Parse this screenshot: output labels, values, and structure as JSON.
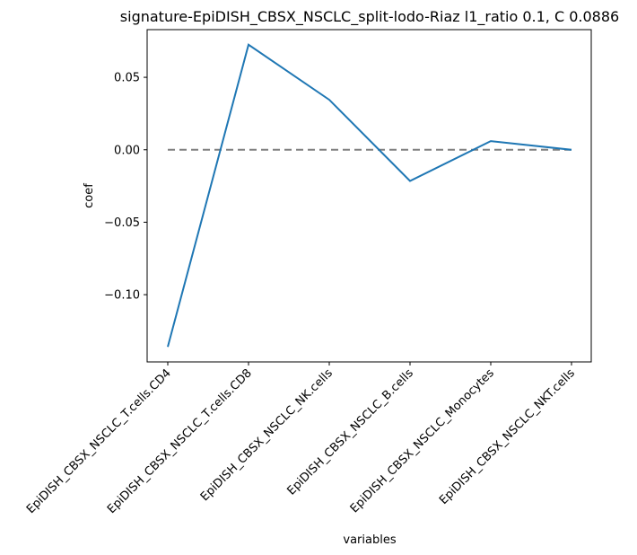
{
  "chart_data": {
    "type": "line",
    "title": "signature-EpiDISH_CBSX_NSCLC_split-lodo-Riaz l1_ratio 0.1, C 0.0886",
    "xlabel": "variables",
    "ylabel": "coef",
    "categories": [
      "EpiDISH_CBSX_NSCLC_T.cells.CD4",
      "EpiDISH_CBSX_NSCLC_T.cells.CD8",
      "EpiDISH_CBSX_NSCLC_NK.cells",
      "EpiDISH_CBSX_NSCLC_B.cells",
      "EpiDISH_CBSX_NSCLC_Monocytes",
      "EpiDISH_CBSX_NSCLC_NKT.cells"
    ],
    "series": [
      {
        "values": [
          -0.136,
          0.0725,
          0.0345,
          -0.0215,
          0.006,
          0.0
        ]
      }
    ],
    "reference_line": {
      "y": 0.0,
      "style": "dashed",
      "color": "#7f7f7f"
    },
    "yticks": [
      {
        "value": -0.1,
        "label": "−0.10"
      },
      {
        "value": -0.05,
        "label": "−0.05"
      },
      {
        "value": 0.0,
        "label": "0.00"
      },
      {
        "value": 0.05,
        "label": "0.05"
      }
    ],
    "ylim": [
      -0.1464,
      0.0829
    ],
    "line_color": "#1f77b4",
    "grid": false
  }
}
